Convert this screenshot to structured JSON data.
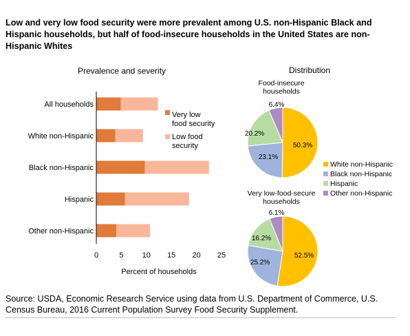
{
  "title": "Low and very low food security were more prevalent among U.S. non-Hispanic Black and Hispanic households, but half of food-insecure households in the United States are non-Hispanic Whites",
  "source": "Source: USDA, Economic Research Service using data from U.S. Department of Commerce, U.S. Census Bureau, 2016 Current Population Survey Food Security Supplement.",
  "colors": {
    "very_low": "#e07b39",
    "low": "#f8b79b",
    "white": "#ffc000",
    "black": "#9eb4dd",
    "hispanic": "#b7dca2",
    "other": "#b08ac6"
  },
  "chart_data": [
    {
      "type": "bar",
      "orientation": "horizontal",
      "stacked": true,
      "title": "Prevalence and severity",
      "xlabel": "Percent of households",
      "categories": [
        "All households",
        "White non-Hispanic",
        "Black non-Hispanic",
        "Hispanic",
        "Other non-Hispanic"
      ],
      "series": [
        {
          "name": "Very low food security",
          "values": [
            4.9,
            3.8,
            9.7,
            5.7,
            4.0
          ]
        },
        {
          "name": "Low food security",
          "values": [
            7.4,
            5.5,
            12.8,
            12.8,
            6.7
          ]
        }
      ],
      "xlim": [
        0,
        25
      ],
      "xticks": [
        "0",
        "5",
        "10",
        "15",
        "20",
        "25"
      ],
      "legend": "right",
      "grid": false
    },
    {
      "type": "pie",
      "super_title": "Distribution",
      "title": "Food-insecure households",
      "labels": [
        "White non-Hispanic",
        "Black non-Hispanic",
        "Hispanic",
        "Other non-Hispanic"
      ],
      "values": [
        50.3,
        23.1,
        20.2,
        6.4
      ],
      "value_labels": [
        "50.3%",
        "23.1%",
        "20.2%",
        "6.4%"
      ],
      "legend": "right"
    },
    {
      "type": "pie",
      "title": "Very low-food-secure households",
      "labels": [
        "White non-Hispanic",
        "Black non-Hispanic",
        "Hispanic",
        "Other non-Hispanic"
      ],
      "values": [
        52.5,
        25.2,
        16.2,
        6.1
      ],
      "value_labels": [
        "52.5%",
        "25.2%",
        "16.2%",
        "6.1%"
      ]
    }
  ]
}
